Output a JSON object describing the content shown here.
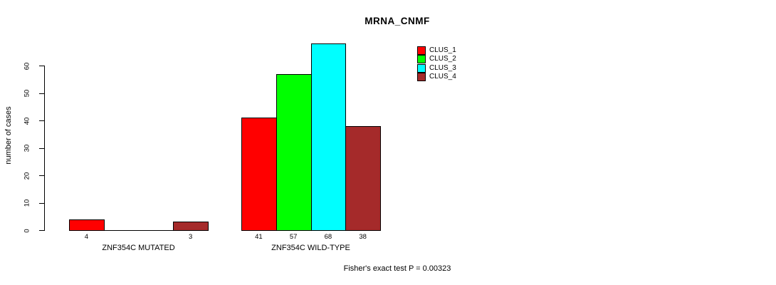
{
  "chart_data": {
    "type": "bar",
    "title": "MRNA_CNMF",
    "ylabel": "number of cases",
    "xlabel": "",
    "annotation": "Fisher's exact test P = 0.00323",
    "yticks": [
      0,
      10,
      20,
      30,
      40,
      50,
      60
    ],
    "ylim": [
      0,
      68
    ],
    "axis_range_shown": [
      0,
      60
    ],
    "grid": false,
    "legend_position": "top-right",
    "categories": [
      "ZNF354C MUTATED",
      "ZNF354C WILD-TYPE"
    ],
    "series": [
      {
        "name": "CLUS_1",
        "color": "#ff0000",
        "values": [
          4,
          41
        ]
      },
      {
        "name": "CLUS_2",
        "color": "#00ff00",
        "values": [
          0,
          57
        ]
      },
      {
        "name": "CLUS_3",
        "color": "#00ffff",
        "values": [
          0,
          68
        ]
      },
      {
        "name": "CLUS_4",
        "color": "#a52a2a",
        "values": [
          3,
          38
        ]
      }
    ],
    "bar_value_labels": {
      "ZNF354C MUTATED": [
        "4",
        "",
        "",
        "3"
      ],
      "ZNF354C WILD-TYPE": [
        "41",
        "57",
        "68",
        "38"
      ]
    },
    "colors": {
      "background": "#ffffff",
      "axis": "#000000",
      "text": "#000000"
    }
  }
}
